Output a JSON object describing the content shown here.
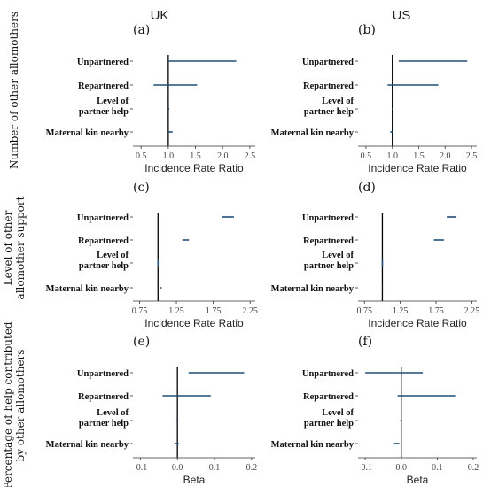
{
  "col_titles": [
    "UK",
    "US"
  ],
  "row_titles": [
    [
      "Number of other allomothers"
    ],
    [
      "Level of other",
      "allomother support"
    ],
    [
      "Percentage of help contributed",
      "by other allomothers"
    ]
  ],
  "colors": {
    "interval": "#1f4e79",
    "reference": "#000000",
    "axis": "#333333"
  },
  "chart_data": [
    {
      "panel": "(a)",
      "type": "forest",
      "country": "UK",
      "xlabel": "Incidence Rate Ratio",
      "xlim": [
        0.35,
        2.6
      ],
      "reference": 1.0,
      "ticks": [
        0.5,
        1.0,
        1.5,
        2.0,
        2.5
      ],
      "tick_labels": [
        "0.5",
        "1.0",
        "1.5",
        "2.0",
        "2.5"
      ],
      "categories": [
        "Unpartnered",
        "Repartnered",
        "Level of\npartner help",
        "Maternal kin nearby"
      ],
      "estimates": [
        {
          "low": 1.0,
          "high": 2.25
        },
        {
          "low": 0.73,
          "high": 1.53
        },
        {
          "low": 0.98,
          "high": 1.02
        },
        {
          "low": 1.0,
          "high": 1.08
        }
      ]
    },
    {
      "panel": "(b)",
      "type": "forest",
      "country": "US",
      "xlabel": "Incidence Rate Ratio",
      "xlim": [
        0.35,
        2.6
      ],
      "reference": 1.0,
      "ticks": [
        0.5,
        1.0,
        1.5,
        2.0,
        2.5
      ],
      "tick_labels": [
        "0.5",
        "1.0",
        "1.5",
        "2.0",
        "2.5"
      ],
      "categories": [
        "Unpartnered",
        "Repartnered",
        "Level of\npartner help",
        "Maternal kin nearby"
      ],
      "estimates": [
        {
          "low": 1.12,
          "high": 2.42
        },
        {
          "low": 0.91,
          "high": 1.87
        },
        {
          "low": 0.99,
          "high": 1.02
        },
        {
          "low": 0.96,
          "high": 1.02
        }
      ]
    },
    {
      "panel": "(c)",
      "type": "forest",
      "country": "UK",
      "xlabel": "Incidence Rate Ratio",
      "xlim": [
        0.66,
        2.32
      ],
      "reference": 1.0,
      "ticks": [
        0.75,
        1.25,
        1.75,
        2.25
      ],
      "tick_labels": [
        "0.75",
        "1.25",
        "1.75",
        "2.25"
      ],
      "categories": [
        "Unpartnered",
        "Repartnered",
        "Level of\npartner help",
        "Maternal kin nearby"
      ],
      "estimates": [
        {
          "low": 1.87,
          "high": 2.03
        },
        {
          "low": 1.33,
          "high": 1.42
        },
        {
          "low": 0.995,
          "high": 1.005
        },
        {
          "low": 1.03,
          "high": 1.05
        }
      ]
    },
    {
      "panel": "(d)",
      "type": "forest",
      "country": "US",
      "xlabel": "Incidence Rate Ratio",
      "xlim": [
        0.66,
        2.32
      ],
      "reference": 1.0,
      "ticks": [
        0.75,
        1.25,
        1.75,
        2.25
      ],
      "tick_labels": [
        "0.75",
        "1.25",
        "1.75",
        "2.25"
      ],
      "categories": [
        "Unpartnered",
        "Repartnered",
        "Level of\npartner help",
        "Maternal kin nearby"
      ],
      "estimates": [
        {
          "low": 1.9,
          "high": 2.03
        },
        {
          "low": 1.72,
          "high": 1.86
        },
        {
          "low": 0.995,
          "high": 1.005
        },
        {
          "low": 0.99,
          "high": 1.01
        }
      ]
    },
    {
      "panel": "(e)",
      "type": "forest",
      "country": "UK",
      "xlabel": "Beta",
      "xlim": [
        -0.12,
        0.21
      ],
      "reference": 0.0,
      "ticks": [
        -0.1,
        0.0,
        0.1,
        0.2
      ],
      "tick_labels": [
        "-0.1",
        "0.0",
        "0.1",
        "0.2"
      ],
      "categories": [
        "Unpartnered",
        "Repartnered",
        "Level of\npartner help",
        "Maternal kin nearby"
      ],
      "estimates": [
        {
          "low": 0.03,
          "high": 0.18
        },
        {
          "low": -0.04,
          "high": 0.09
        },
        {
          "low": -0.003,
          "high": 0.001
        },
        {
          "low": -0.008,
          "high": 0.004
        }
      ]
    },
    {
      "panel": "(f)",
      "type": "forest",
      "country": "US",
      "xlabel": "Beta",
      "xlim": [
        -0.12,
        0.21
      ],
      "reference": 0.0,
      "ticks": [
        -0.1,
        0.0,
        0.1,
        0.2
      ],
      "tick_labels": [
        "-0.1",
        "0.0",
        "0.1",
        "0.2"
      ],
      "categories": [
        "Unpartnered",
        "Repartnered",
        "Level of\npartner help",
        "Maternal kin nearby"
      ],
      "estimates": [
        {
          "low": -0.1,
          "high": 0.06
        },
        {
          "low": -0.01,
          "high": 0.15
        },
        {
          "low": -0.003,
          "high": 0.001
        },
        {
          "low": -0.02,
          "high": -0.005
        }
      ]
    }
  ]
}
